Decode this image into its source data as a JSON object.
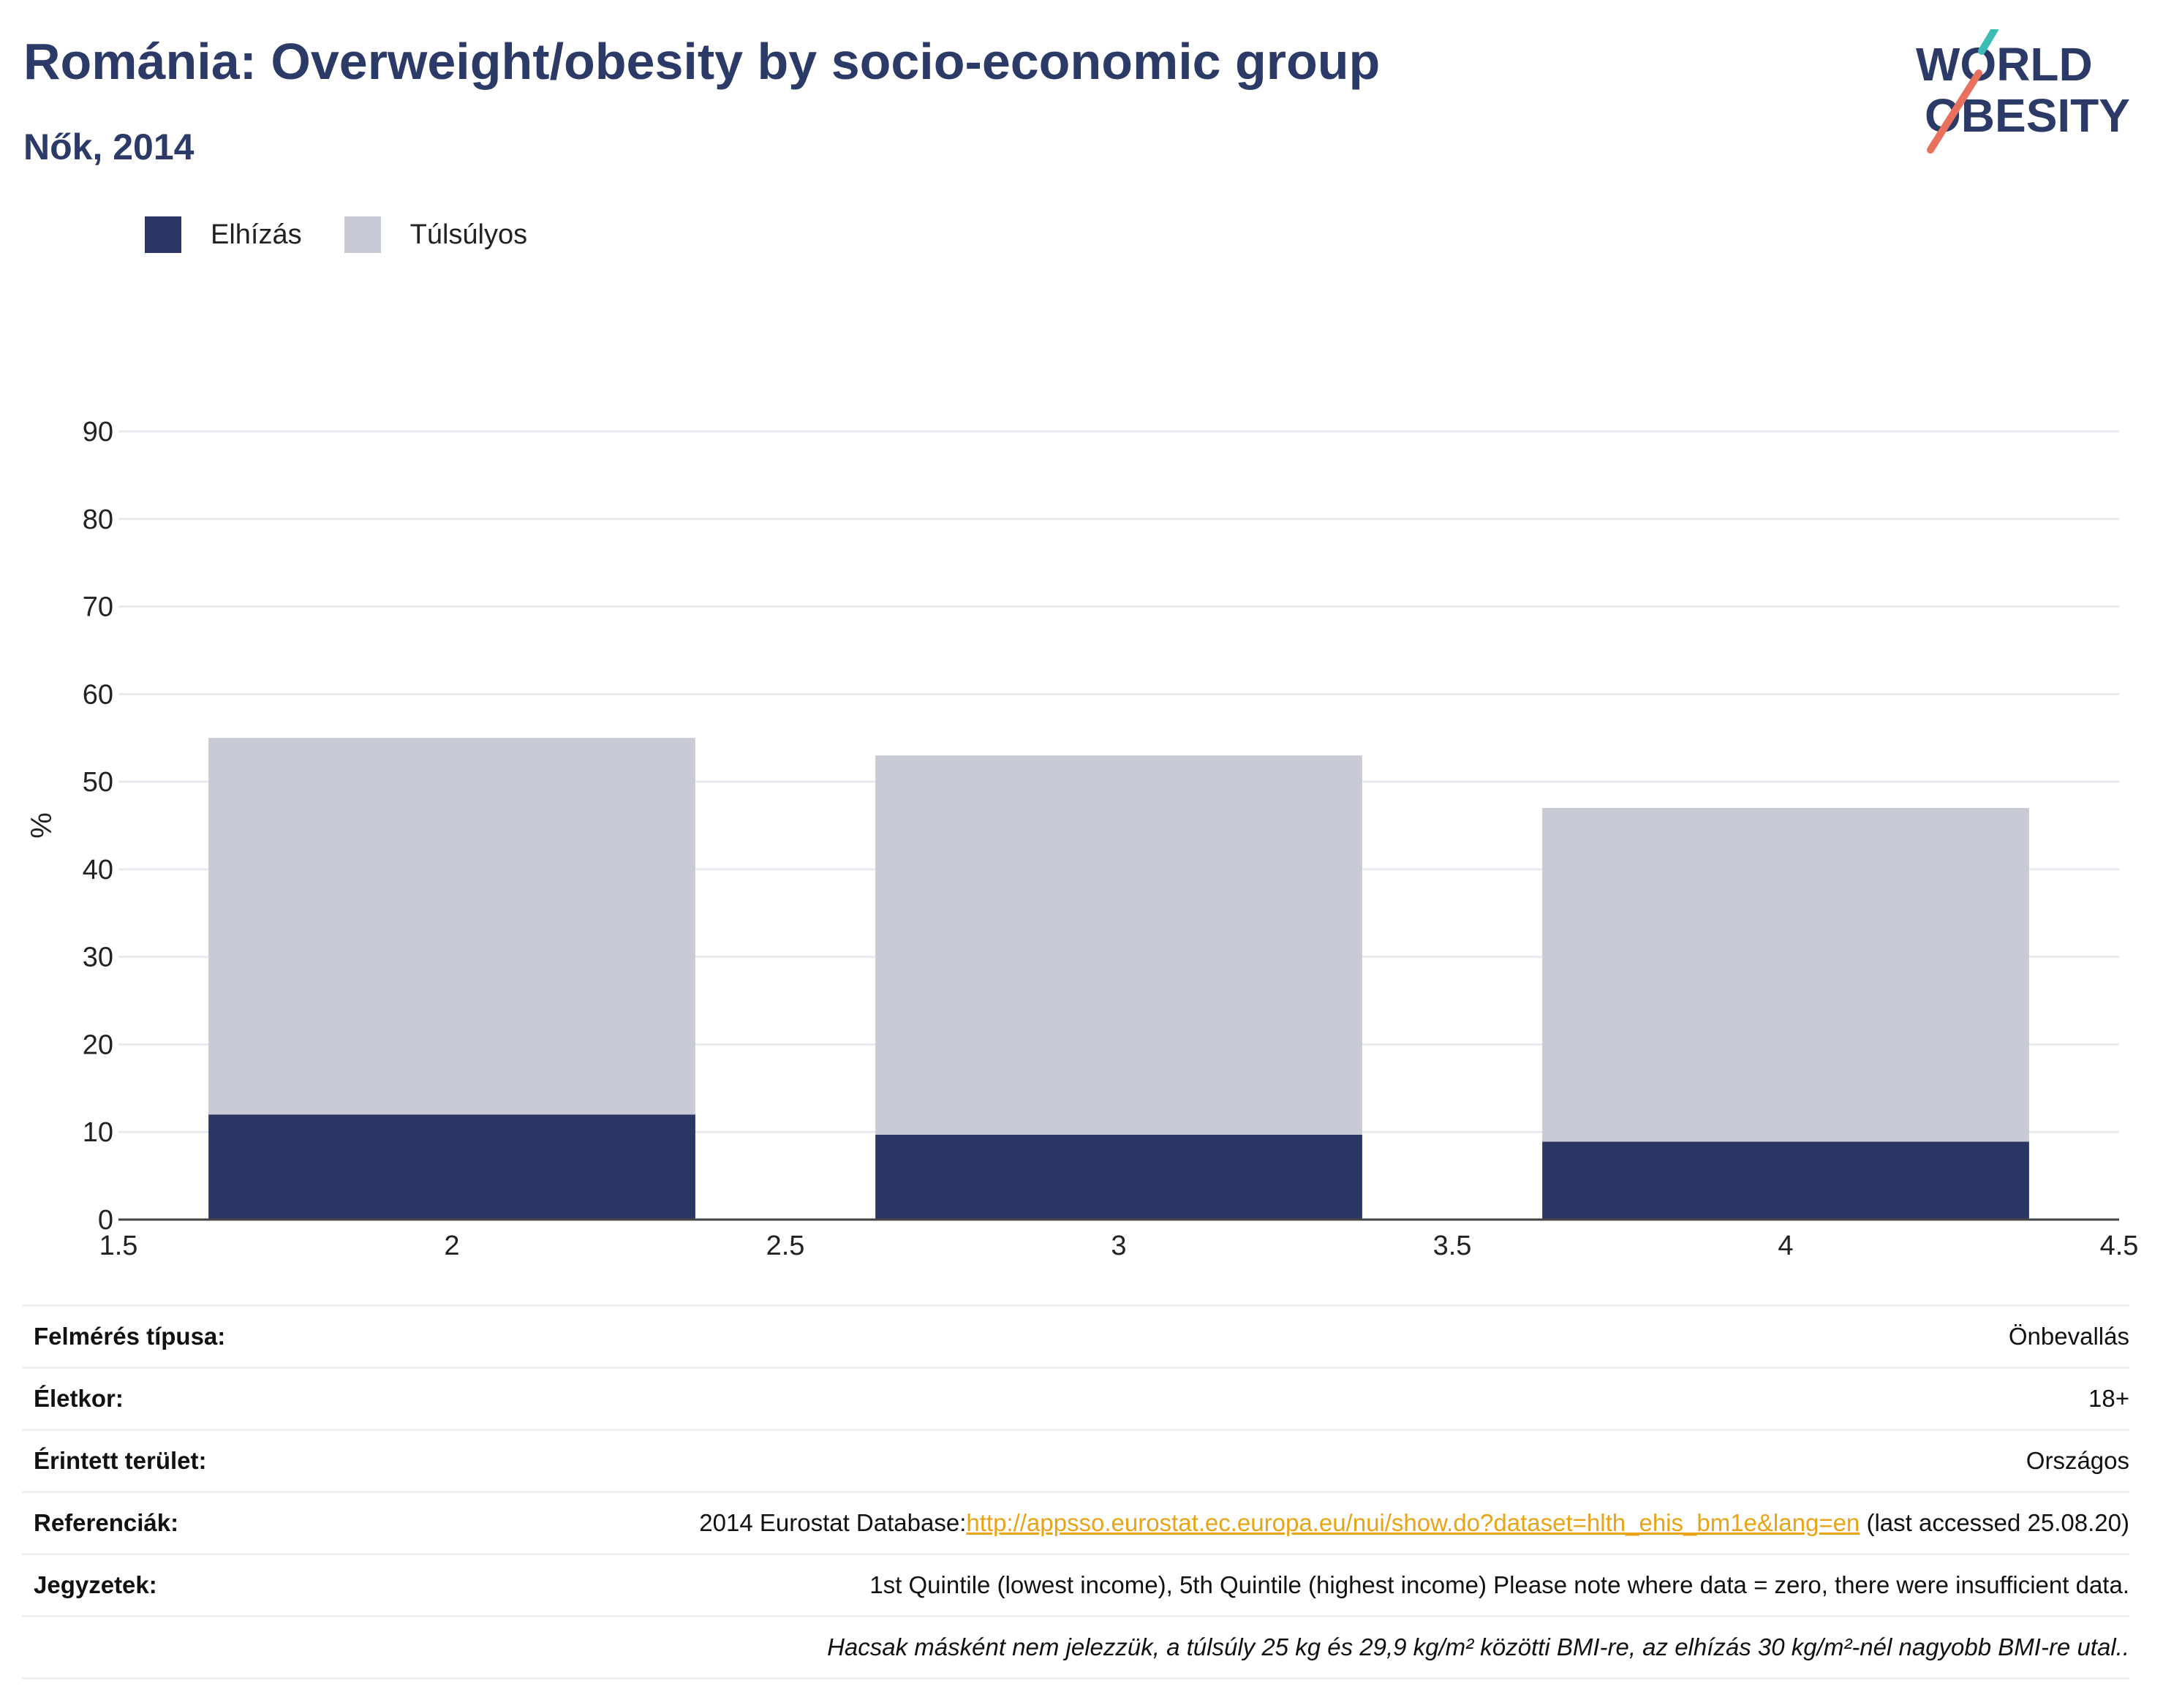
{
  "header": {
    "title": "Románia: Overweight/obesity by socio-economic group",
    "subtitle": "Nők, 2014"
  },
  "logo": {
    "line1": "WORLD",
    "line2": "OBESITY"
  },
  "colors": {
    "obesity": "#2b3664",
    "overweight": "#c8cbd6",
    "title": "#2b3a67",
    "link": "#e8a317"
  },
  "chart_data": {
    "type": "bar",
    "stacked": true,
    "x": [
      2,
      3,
      4
    ],
    "series": [
      {
        "name": "Elhízás",
        "values": [
          12,
          9.7,
          8.9
        ]
      },
      {
        "name": "Túlsúlyos",
        "values": [
          43,
          43.3,
          38.1
        ]
      }
    ],
    "xlim": [
      1.5,
      4.5
    ],
    "ylim": [
      0,
      90
    ],
    "xticks": [
      "1.5",
      "2",
      "2.5",
      "3",
      "3.5",
      "4",
      "4.5"
    ],
    "yticks": [
      "0",
      "10",
      "20",
      "30",
      "40",
      "50",
      "60",
      "70",
      "80",
      "90"
    ],
    "ylabel": "%",
    "xlabel": "",
    "grid": true,
    "legend_position": "top-left"
  },
  "info": [
    {
      "label": "Felmérés típusa:",
      "value": "Önbevallás"
    },
    {
      "label": "Életkor:",
      "value": "18+"
    },
    {
      "label": "Érintett terület:",
      "value": "Országos"
    },
    {
      "label": "Referenciák:",
      "value_prefix": "2014 Eurostat Database:",
      "link": "http://appsso.eurostat.ec.europa.eu/nui/show.do?dataset=hlth_ehis_bm1e&lang=en",
      "value_suffix": " (last accessed 25.08.20)"
    },
    {
      "label": "Jegyzetek:",
      "value": "1st Quintile (lowest income), 5th Quintile (highest income) Please note where data = zero, there were insufficient data."
    },
    {
      "label": "",
      "value": "Hacsak másként nem jelezzük, a túlsúly 25 kg és 29,9 kg/m² közötti BMI-re, az elhízás 30 kg/m²-nél nagyobb BMI-re utal.."
    }
  ]
}
